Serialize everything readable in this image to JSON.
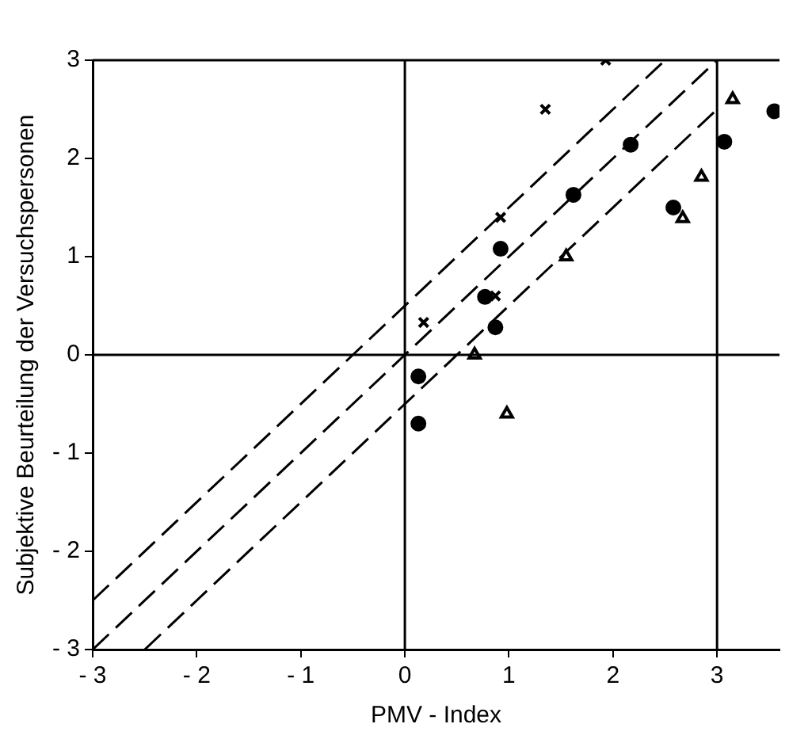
{
  "chart_data": {
    "type": "scatter",
    "xlabel": "PMV - Index",
    "ylabel": "Subjektive Beurteilung der Versuchspersonen",
    "xlim": [
      -3,
      3.6
    ],
    "ylim": [
      -3,
      3
    ],
    "xticks": [
      -3,
      -2,
      -1,
      0,
      1,
      2,
      3
    ],
    "yticks": [
      -3,
      -2,
      -1,
      0,
      1,
      2,
      3
    ],
    "grid": false,
    "legend": false,
    "series": [
      {
        "color": "#000000",
        "marker": "cross",
        "x": [
          1.93,
          1.35,
          0.92,
          0.87,
          0.18
        ],
        "values": [
          3.0,
          2.5,
          1.4,
          0.6,
          0.33
        ]
      },
      {
        "color": "#000000",
        "marker": "circle",
        "x": [
          2.17,
          1.62,
          0.92,
          0.77,
          0.13
        ],
        "values": [
          2.14,
          1.63,
          1.08,
          0.59,
          -0.22
        ]
      },
      {
        "color": "#000000",
        "marker": "circle",
        "x": [
          3.55,
          3.07,
          2.58,
          0.87,
          0.13
        ],
        "values": [
          2.48,
          2.17,
          1.5,
          0.28,
          -0.7
        ]
      },
      {
        "color": "#000000",
        "marker": "triangle",
        "x": [
          3.15,
          2.85,
          2.67,
          1.55,
          0.67,
          0.98
        ],
        "values": [
          2.6,
          1.81,
          1.39,
          1.0,
          0.0,
          -0.6
        ]
      },
      {
        "type": "line",
        "color": "#000000",
        "line_style": "dashed",
        "marker": "none",
        "x": [
          -3,
          2.5
        ],
        "values": [
          -2.5,
          3
        ]
      },
      {
        "type": "line",
        "color": "#000000",
        "line_style": "dashed",
        "marker": "none",
        "x": [
          -3,
          3
        ],
        "values": [
          -3,
          3
        ]
      },
      {
        "type": "line",
        "color": "#000000",
        "line_style": "dashed",
        "marker": "none",
        "x": [
          -2.5,
          3
        ],
        "values": [
          -3,
          2.5
        ]
      }
    ],
    "ref_lines": [
      {
        "axis": "x",
        "value": 0
      },
      {
        "axis": "y",
        "value": 0
      },
      {
        "axis": "x",
        "value": 3
      }
    ]
  }
}
